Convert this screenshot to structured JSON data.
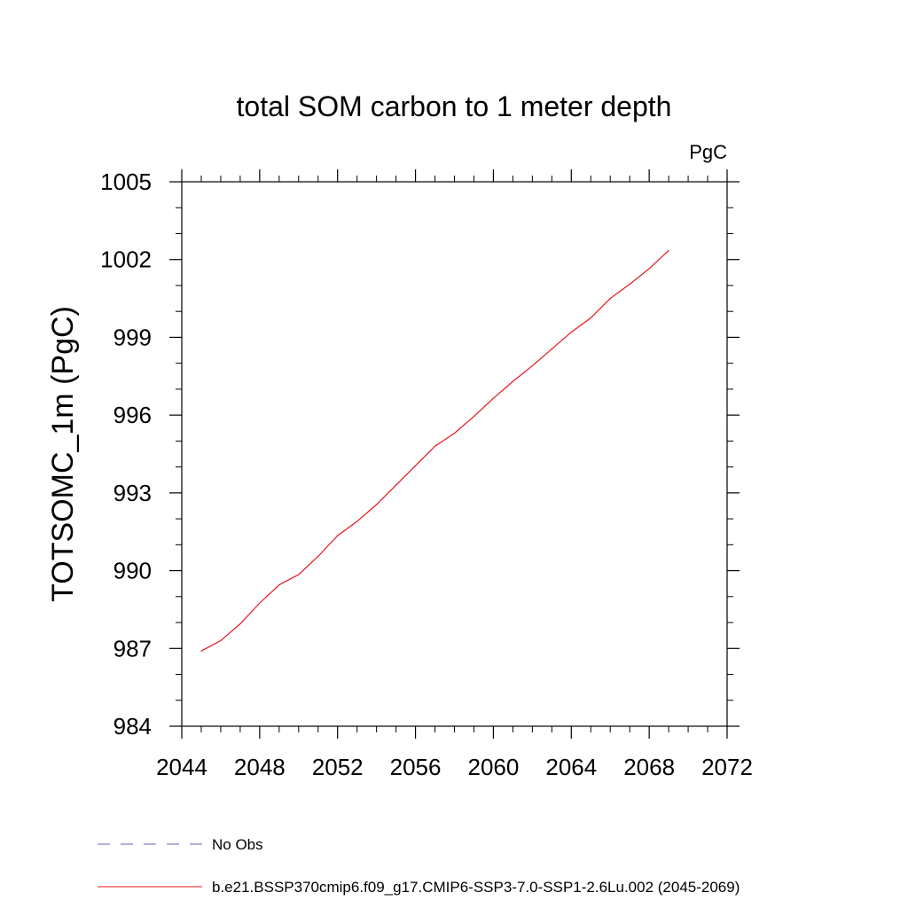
{
  "chart_data": {
    "type": "line",
    "title": "total SOM carbon to 1 meter depth",
    "units": "PgC",
    "xlabel": "",
    "ylabel": "TOTSOMC_1m  (PgC)",
    "xlim": [
      2044,
      2072
    ],
    "ylim": [
      984,
      1005
    ],
    "xticks": [
      "2044",
      "2048",
      "2052",
      "2056",
      "2060",
      "2064",
      "2068",
      "2072"
    ],
    "yticks": [
      "984",
      "987",
      "990",
      "993",
      "996",
      "999",
      "1002",
      "1005"
    ],
    "grid": false,
    "legend": [
      {
        "label": "No Obs",
        "color": "#6f5fb3",
        "style": "dashed"
      },
      {
        "label": "b.e21.BSSP370cmip6.f09_g17.CMIP6-SSP3-7.0-SSP1-2.6Lu.002 (2045-2069)",
        "color": "#e8141e",
        "style": "solid"
      }
    ],
    "series": [
      {
        "color": "#e8141e",
        "x": [
          2045,
          2046,
          2047,
          2048,
          2049,
          2050,
          2051,
          2052,
          2053,
          2054,
          2055,
          2056,
          2057,
          2058,
          2059,
          2060,
          2061,
          2062,
          2063,
          2064,
          2065,
          2066,
          2067,
          2068,
          2069
        ],
        "values": [
          986.9,
          987.3,
          987.95,
          988.75,
          989.45,
          989.85,
          990.55,
          991.35,
          991.9,
          992.55,
          993.3,
          994.05,
          994.8,
          995.3,
          995.95,
          996.65,
          997.3,
          997.9,
          998.55,
          999.2,
          999.75,
          1000.5,
          1001.05,
          1001.65,
          1002.35
        ]
      }
    ]
  }
}
